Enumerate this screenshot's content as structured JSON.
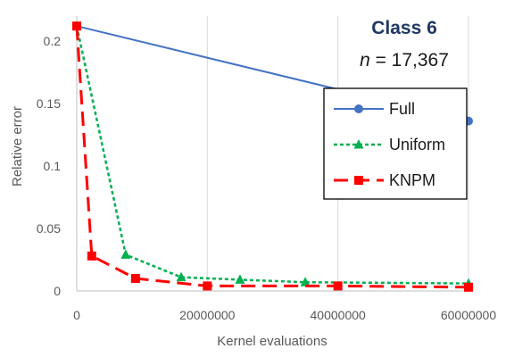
{
  "chart_data": {
    "type": "line",
    "title": "Class 6",
    "subtitle_var": "n",
    "subtitle_value": " = 17,367",
    "xlabel": "Kernel evaluations",
    "ylabel": "Relative error",
    "xlim": [
      0,
      60000000
    ],
    "ylim": [
      0,
      0.22
    ],
    "xticks": [
      0,
      20000000,
      40000000,
      60000000
    ],
    "xtick_labels": [
      "0",
      "20000000",
      "40000000",
      "60000000"
    ],
    "yticks": [
      0,
      0.05,
      0.1,
      0.15,
      0.2
    ],
    "ytick_labels": [
      "0",
      "0.05",
      "0.1",
      "0.15",
      "0.2"
    ],
    "grid": "vertical",
    "legend_position": "right",
    "series": [
      {
        "name": "Full",
        "color": "#4472c4",
        "dash": "solid",
        "marker": "circle",
        "x": [
          0,
          60000000
        ],
        "y": [
          0.212,
          0.136
        ]
      },
      {
        "name": "Uniform",
        "color": "#00b050",
        "dash": "dotted",
        "marker": "triangle",
        "x": [
          0,
          7500000,
          16000000,
          25000000,
          35000000,
          60000000
        ],
        "y": [
          0.212,
          0.029,
          0.011,
          0.009,
          0.007,
          0.006
        ]
      },
      {
        "name": "KNPM",
        "color": "#ff0000",
        "dash": "dashed",
        "marker": "square",
        "x": [
          0,
          2300000,
          9000000,
          20000000,
          40000000,
          60000000
        ],
        "y": [
          0.212,
          0.028,
          0.01,
          0.004,
          0.004,
          0.003
        ]
      }
    ]
  }
}
